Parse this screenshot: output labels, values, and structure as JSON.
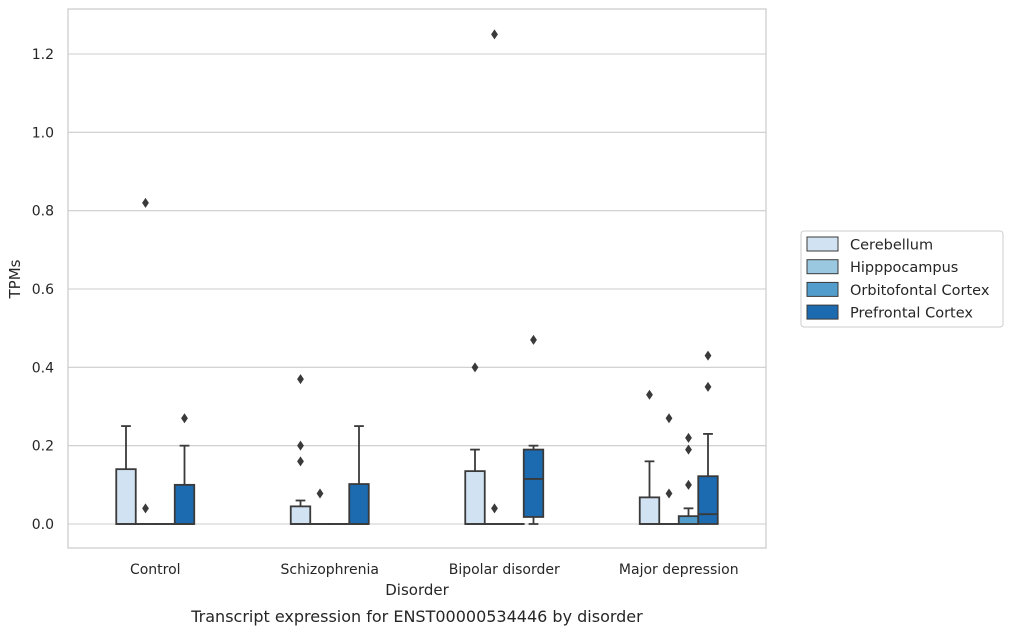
{
  "chart_data": {
    "type": "box",
    "caption": "Transcript expression for ENST00000534446 by disorder",
    "xlabel": "Disorder",
    "ylabel": "TPMs",
    "ylim": [
      -0.06,
      1.31
    ],
    "yticks": [
      0.0,
      0.2,
      0.4,
      0.6,
      0.8,
      1.0,
      1.2
    ],
    "grid": "horizontal",
    "legend_position": "right",
    "categories": [
      "Control",
      "Schizophrenia",
      "Bipolar disorder",
      "Major depression"
    ],
    "series": [
      {
        "name": "Cerebellum",
        "color": "#d1e2f2",
        "boxes": [
          {
            "whisker_low": 0.0,
            "q1": 0.0,
            "median": 0.0,
            "q3": 0.14,
            "whisker_high": 0.25,
            "outliers": []
          },
          {
            "whisker_low": 0.0,
            "q1": 0.0,
            "median": 0.0,
            "q3": 0.045,
            "whisker_high": 0.06,
            "outliers": [
              0.37,
              0.2,
              0.16
            ]
          },
          {
            "whisker_low": 0.0,
            "q1": 0.0,
            "median": 0.0,
            "q3": 0.135,
            "whisker_high": 0.19,
            "outliers": [
              0.4
            ]
          },
          {
            "whisker_low": 0.0,
            "q1": 0.0,
            "median": 0.0,
            "q3": 0.068,
            "whisker_high": 0.16,
            "outliers": [
              0.33
            ]
          }
        ]
      },
      {
        "name": "Hipppocampus",
        "color": "#9ac8e0",
        "boxes": [
          {
            "whisker_low": 0.0,
            "q1": 0.0,
            "median": 0.0,
            "q3": 0.0,
            "whisker_high": 0.0,
            "outliers": [
              0.82,
              0.04
            ]
          },
          {
            "whisker_low": 0.0,
            "q1": 0.0,
            "median": 0.0,
            "q3": 0.0,
            "whisker_high": 0.0,
            "outliers": [
              0.078
            ]
          },
          {
            "whisker_low": 0.0,
            "q1": 0.0,
            "median": 0.0,
            "q3": 0.0,
            "whisker_high": 0.0,
            "outliers": [
              1.25,
              0.04
            ]
          },
          {
            "whisker_low": 0.0,
            "q1": 0.0,
            "median": 0.0,
            "q3": 0.0,
            "whisker_high": 0.0,
            "outliers": [
              0.27,
              0.078
            ]
          }
        ]
      },
      {
        "name": "Orbitofontal Cortex",
        "color": "#529dcc",
        "boxes": [
          {
            "whisker_low": 0.0,
            "q1": 0.0,
            "median": 0.0,
            "q3": 0.0,
            "whisker_high": 0.0,
            "outliers": []
          },
          {
            "whisker_low": 0.0,
            "q1": 0.0,
            "median": 0.0,
            "q3": 0.0,
            "whisker_high": 0.0,
            "outliers": []
          },
          {
            "whisker_low": 0.0,
            "q1": 0.0,
            "median": 0.0,
            "q3": 0.0,
            "whisker_high": 0.0,
            "outliers": []
          },
          {
            "whisker_low": 0.0,
            "q1": 0.0,
            "median": 0.0,
            "q3": 0.02,
            "whisker_high": 0.04,
            "outliers": [
              0.22,
              0.19,
              0.1
            ]
          }
        ]
      },
      {
        "name": "Prefrontal Cortex",
        "color": "#1c6aaf",
        "boxes": [
          {
            "whisker_low": 0.0,
            "q1": 0.0,
            "median": 0.0,
            "q3": 0.1,
            "whisker_high": 0.2,
            "outliers": [
              0.27
            ]
          },
          {
            "whisker_low": 0.0,
            "q1": 0.0,
            "median": 0.0,
            "q3": 0.102,
            "whisker_high": 0.25,
            "outliers": []
          },
          {
            "whisker_low": 0.0,
            "q1": 0.018,
            "median": 0.115,
            "q3": 0.19,
            "whisker_high": 0.2,
            "outliers": [
              0.47
            ]
          },
          {
            "whisker_low": 0.0,
            "q1": 0.0,
            "median": 0.025,
            "q3": 0.122,
            "whisker_high": 0.23,
            "outliers": [
              0.43,
              0.35
            ]
          }
        ]
      }
    ]
  }
}
